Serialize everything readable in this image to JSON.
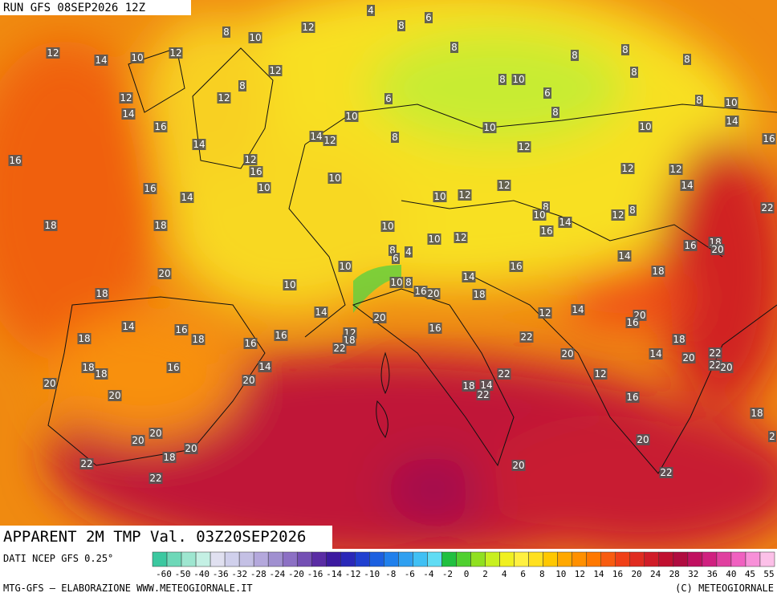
{
  "header": {
    "run": "RUN GFS 08SEP2026 12Z"
  },
  "map": {
    "title": "APPARENT 2M TMP Val. 03Z20SEP2026",
    "labels": [
      4,
      6,
      8,
      10,
      12,
      8,
      12,
      14,
      10,
      12,
      8,
      8,
      8,
      8,
      8,
      12,
      8,
      8,
      10,
      12,
      12,
      6,
      6,
      8,
      10,
      14,
      10,
      8,
      16,
      10,
      10,
      14,
      14,
      12,
      8,
      14,
      16,
      12,
      16,
      12,
      16,
      12,
      12,
      10,
      12,
      14,
      16,
      10,
      14,
      10,
      12,
      22,
      8,
      8,
      12,
      10,
      18,
      18,
      10,
      14,
      16,
      10,
      12,
      16,
      18,
      20,
      8,
      4,
      14,
      10,
      16,
      6,
      20,
      18,
      14,
      10,
      10,
      8,
      16,
      20,
      18,
      18,
      14,
      12,
      14,
      20,
      16,
      20,
      14,
      16,
      16,
      16,
      12,
      18,
      18,
      18,
      22,
      22,
      18,
      16,
      20,
      14,
      20,
      22,
      22,
      20,
      14,
      18,
      18,
      16,
      12,
      22,
      20,
      20,
      18,
      14,
      22,
      20,
      16,
      18,
      20,
      20,
      20,
      2,
      20,
      18,
      22,
      20,
      22,
      22
    ]
  },
  "legend": {
    "source": "DATI NCEP GFS 0.25°",
    "ticks": [
      -60,
      -50,
      -40,
      -36,
      -32,
      -28,
      -24,
      -20,
      -16,
      -14,
      -12,
      -10,
      -8,
      -6,
      -4,
      -2,
      0,
      2,
      4,
      6,
      8,
      10,
      12,
      14,
      16,
      20,
      24,
      28,
      32,
      36,
      40,
      45,
      55
    ],
    "colors": [
      "#3cc8a0",
      "#6ed8b8",
      "#9ee6d0",
      "#c4f0e4",
      "#e0e0f0",
      "#d0d0ec",
      "#c4c0e4",
      "#b4a8dc",
      "#a090d0",
      "#8c70c4",
      "#7450b4",
      "#5a2ca4",
      "#3c1aa0",
      "#2a28b8",
      "#2040d0",
      "#1c60e0",
      "#2080ec",
      "#30a0f0",
      "#40c0f4",
      "#60dcf4",
      "#20c040",
      "#50d030",
      "#90e020",
      "#c8f020",
      "#f0f020",
      "#fff040",
      "#ffe020",
      "#ffc800",
      "#ffa800",
      "#ff9000",
      "#ff7800",
      "#f85c10",
      "#f04018",
      "#e02c20",
      "#d01c28",
      "#c01030",
      "#b00c40",
      "#c01060",
      "#d02080",
      "#e040a0",
      "#f060c0",
      "#f890d8",
      "#fcc0e8"
    ]
  },
  "footer": {
    "left": "MTG-GFS — ELABORAZIONE WWW.METEOGIORNALE.IT",
    "right": "(C) METEOGIORNALE"
  }
}
